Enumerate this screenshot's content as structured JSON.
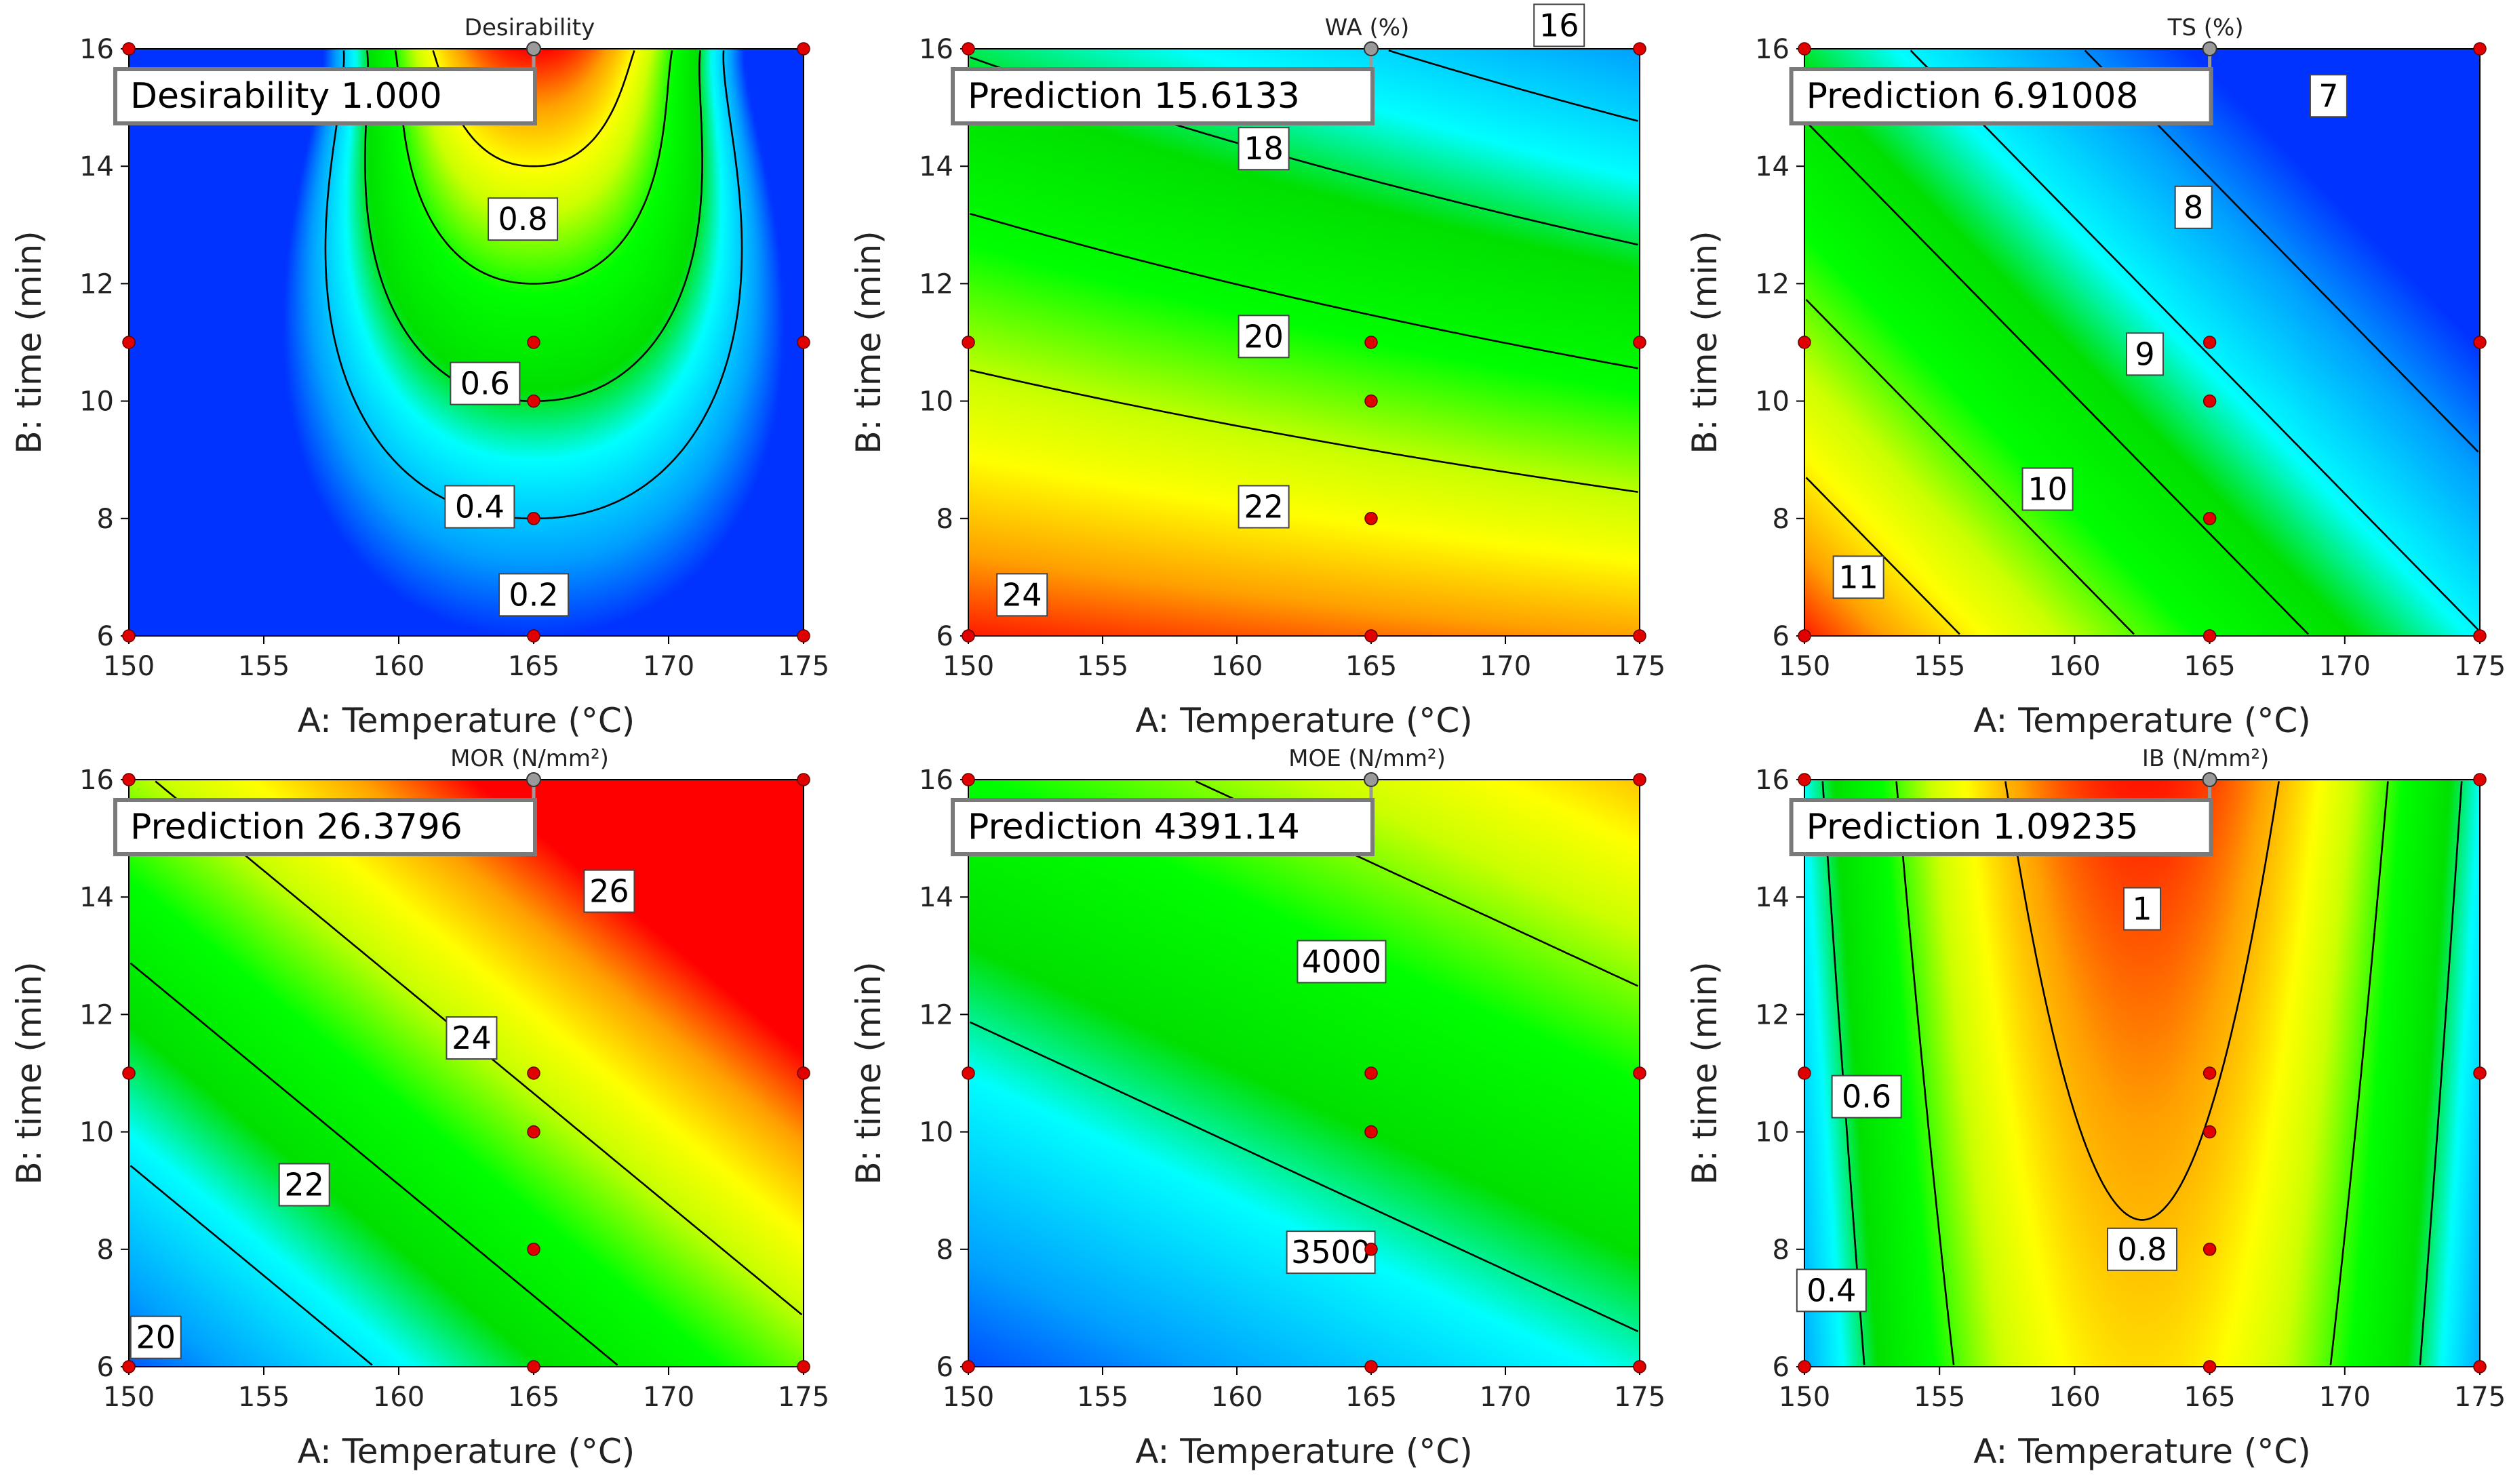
{
  "colors": {
    "palette": [
      "#0033ff",
      "#00a0ff",
      "#00ffff",
      "#00e000",
      "#00ff00",
      "#ccff00",
      "#ffff00",
      "#ffa000",
      "#ff0000"
    ]
  },
  "chart_data": [
    {
      "type": "contour",
      "title": "Desirability",
      "xlabel": "A: Temperature (°C)",
      "ylabel": "B: time (min)",
      "xlim": [
        150,
        175
      ],
      "ylim": [
        6,
        16
      ],
      "xticks": [
        "150",
        "155",
        "160",
        "165",
        "170",
        "175"
      ],
      "yticks": [
        "6",
        "8",
        "10",
        "12",
        "14",
        "16"
      ],
      "prediction_label": "Desirability",
      "prediction_value": "1.000",
      "prediction_at": [
        165,
        16
      ],
      "contour_levels": [
        "0.2",
        "0.4",
        "0.6",
        "0.8"
      ]
    },
    {
      "type": "contour",
      "title": "WA (%)",
      "xlabel": "A: Temperature (°C)",
      "ylabel": "B: time (min)",
      "xlim": [
        150,
        175
      ],
      "ylim": [
        6,
        16
      ],
      "xticks": [
        "150",
        "155",
        "160",
        "165",
        "170",
        "175"
      ],
      "yticks": [
        "6",
        "8",
        "10",
        "12",
        "14",
        "16"
      ],
      "prediction_label": "Prediction",
      "prediction_value": "15.6133",
      "prediction_at": [
        165,
        16
      ],
      "contour_levels": [
        "16",
        "18",
        "20",
        "22",
        "24"
      ]
    },
    {
      "type": "contour",
      "title": "TS (%)",
      "xlabel": "A: Temperature (°C)",
      "ylabel": "B: time (min)",
      "xlim": [
        150,
        175
      ],
      "ylim": [
        6,
        16
      ],
      "xticks": [
        "150",
        "155",
        "160",
        "165",
        "170",
        "175"
      ],
      "yticks": [
        "6",
        "8",
        "10",
        "12",
        "14",
        "16"
      ],
      "prediction_label": "Prediction",
      "prediction_value": "6.91008",
      "prediction_at": [
        165,
        16
      ],
      "contour_levels": [
        "7",
        "8",
        "9",
        "10",
        "11"
      ]
    },
    {
      "type": "contour",
      "title": "MOR (N/mm²)",
      "xlabel": "A: Temperature (°C)",
      "ylabel": "B: time (min)",
      "xlim": [
        150,
        175
      ],
      "ylim": [
        6,
        16
      ],
      "xticks": [
        "150",
        "155",
        "160",
        "165",
        "170",
        "175"
      ],
      "yticks": [
        "6",
        "8",
        "10",
        "12",
        "14",
        "16"
      ],
      "prediction_label": "Prediction",
      "prediction_value": "26.3796",
      "prediction_at": [
        165,
        16
      ],
      "contour_levels": [
        "20",
        "22",
        "24",
        "26"
      ]
    },
    {
      "type": "contour",
      "title": "MOE (N/mm²)",
      "xlabel": "A: Temperature (°C)",
      "ylabel": "B: time (min)",
      "xlim": [
        150,
        175
      ],
      "ylim": [
        6,
        16
      ],
      "xticks": [
        "150",
        "155",
        "160",
        "165",
        "170",
        "175"
      ],
      "yticks": [
        "6",
        "8",
        "10",
        "12",
        "14",
        "16"
      ],
      "prediction_label": "Prediction",
      "prediction_value": "4391.14",
      "prediction_at": [
        165,
        16
      ],
      "contour_levels": [
        "3500",
        "4000"
      ]
    },
    {
      "type": "contour",
      "title": "IB (N/mm²)",
      "xlabel": "A: Temperature (°C)",
      "ylabel": "B: time (min)",
      "xlim": [
        150,
        175
      ],
      "ylim": [
        6,
        16
      ],
      "xticks": [
        "150",
        "155",
        "160",
        "165",
        "170",
        "175"
      ],
      "yticks": [
        "6",
        "8",
        "10",
        "12",
        "14",
        "16"
      ],
      "prediction_label": "Prediction",
      "prediction_value": "1.09235",
      "prediction_at": [
        165,
        16
      ],
      "contour_levels": [
        "0.4",
        "0.6",
        "0.8",
        "1"
      ]
    }
  ],
  "design_points": [
    [
      150,
      6
    ],
    [
      150,
      11
    ],
    [
      150,
      16
    ],
    [
      165,
      6
    ],
    [
      165,
      8
    ],
    [
      165,
      10
    ],
    [
      165,
      11
    ],
    [
      175,
      6
    ],
    [
      175,
      11
    ],
    [
      175,
      16
    ]
  ]
}
